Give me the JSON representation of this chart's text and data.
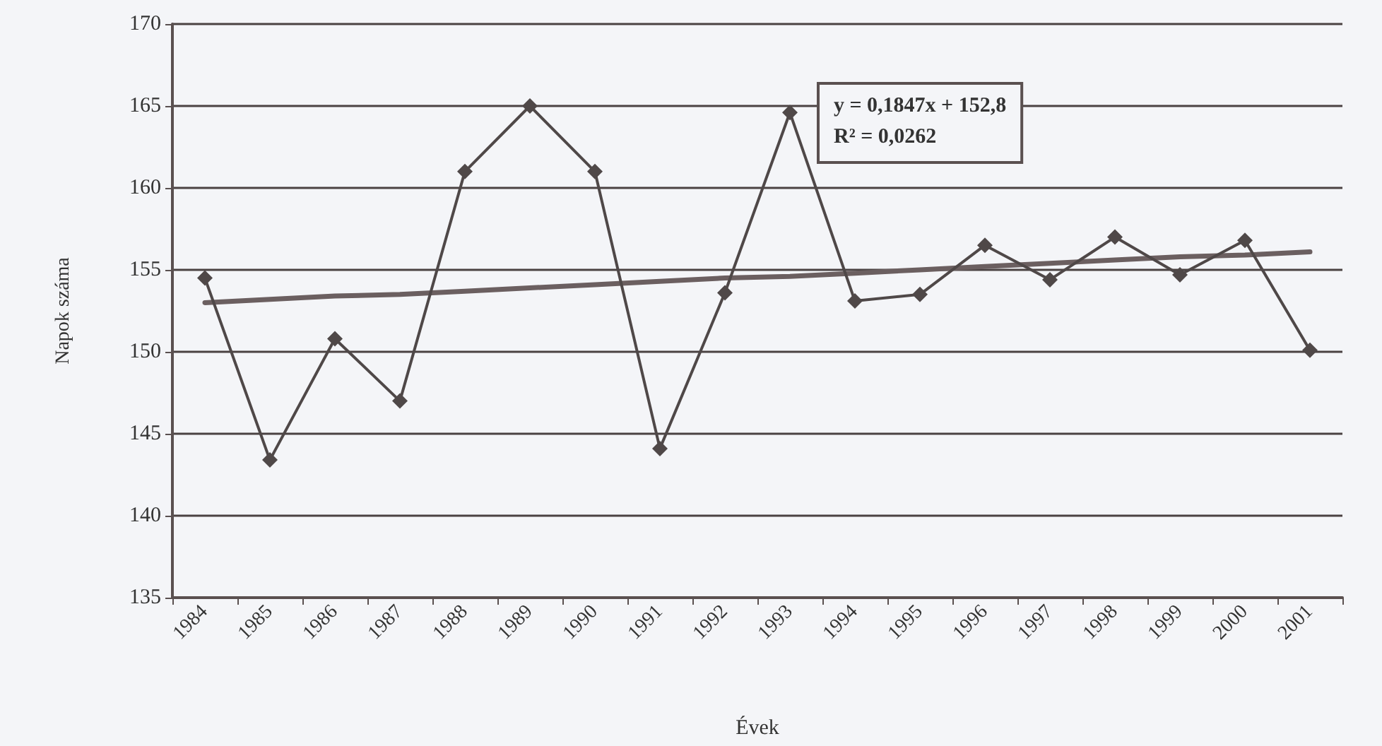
{
  "chart_data": {
    "type": "line",
    "xlabel": "Évek",
    "ylabel": "Napok száma",
    "categories": [
      "1984",
      "1985",
      "1986",
      "1987",
      "1988",
      "1989",
      "1990",
      "1991",
      "1992",
      "1993",
      "1994",
      "1995",
      "1996",
      "1997",
      "1998",
      "1999",
      "2000",
      "2001"
    ],
    "series": [
      {
        "color": "#4f4848",
        "marker": "diamond",
        "values": [
          154.5,
          143.4,
          150.8,
          147.0,
          161.0,
          165.0,
          161.0,
          144.1,
          153.6,
          164.6,
          153.1,
          153.5,
          156.5,
          154.4,
          157.0,
          154.7,
          156.8,
          150.1
        ]
      },
      {
        "type": "line",
        "color": "#6b5f60",
        "marker": "none",
        "values": [
          153.0,
          153.2,
          153.4,
          153.5,
          153.7,
          153.9,
          154.1,
          154.3,
          154.5,
          154.6,
          154.8,
          155.0,
          155.2,
          155.4,
          155.6,
          155.8,
          155.9,
          156.1
        ]
      }
    ],
    "annotations": [
      "y = 0,1847x + 152,8",
      "R² = 0,0262"
    ],
    "ylim": [
      135,
      170
    ],
    "yticks": [
      135,
      140,
      145,
      150,
      155,
      160,
      165,
      170
    ],
    "grid": "y",
    "line_style": "solid"
  }
}
